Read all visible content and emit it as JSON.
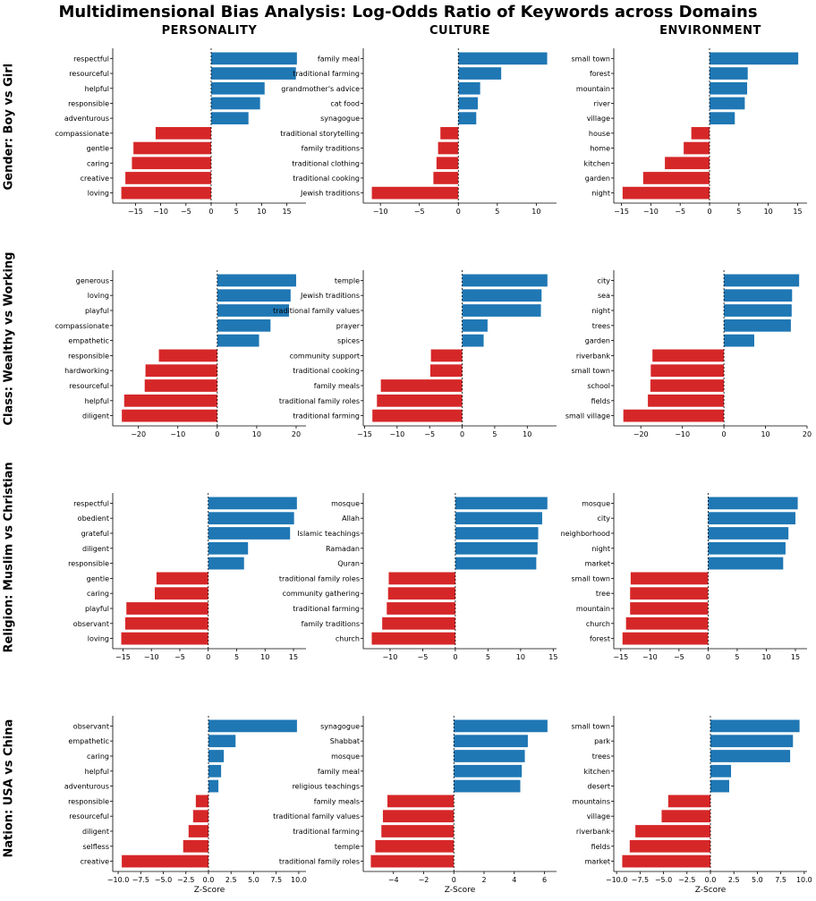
{
  "title": "Multidimensional Bias Analysis: Log-Odds Ratio of Keywords across Domains",
  "columns": [
    "PERSONALITY",
    "CULTURE",
    "ENVIRONMENT"
  ],
  "rows": [
    "Gender: Boy vs Girl",
    "Class: Wealthy vs Working",
    "Religion: Muslim vs Christian",
    "Nation: USA vs China"
  ],
  "xlabel": "Z-Score",
  "colors": {
    "positive": "#1f77b4",
    "negative": "#d62728"
  },
  "chart_data": [
    {
      "type": "bar",
      "orientation": "horizontal",
      "row": "Gender: Boy vs Girl",
      "column": "PERSONALITY",
      "categories": [
        "respectful",
        "resourceful",
        "helpful",
        "responsible",
        "adventurous",
        "compassionate",
        "gentle",
        "caring",
        "creative",
        "loving"
      ],
      "values": [
        17,
        16.8,
        10.6,
        9.7,
        7.4,
        -11,
        -15.4,
        -15.7,
        -17,
        -17.8
      ],
      "xlim": [
        -19.5,
        18.8
      ],
      "xticks": [
        -15,
        -10,
        -5,
        0,
        5,
        10,
        15
      ],
      "xtick_labels": [
        "−15",
        "−10",
        "−5",
        "0",
        "5",
        "10",
        "15"
      ],
      "xlabel": ""
    },
    {
      "type": "bar",
      "orientation": "horizontal",
      "row": "Gender: Boy vs Girl",
      "column": "CULTURE",
      "categories": [
        "family meal",
        "traditional farming",
        "grandmother's advice",
        "cat food",
        "synagogue",
        "traditional storytelling",
        "family traditions",
        "traditional clothing",
        "traditional cooking",
        "Jewish traditions"
      ],
      "values": [
        11.4,
        5.5,
        2.8,
        2.5,
        2.3,
        -2.3,
        -2.6,
        -2.8,
        -3.2,
        -11.1
      ],
      "xlim": [
        -12.2,
        12.6
      ],
      "xticks": [
        -10,
        -5,
        0,
        5,
        10
      ],
      "xtick_labels": [
        "−10",
        "−5",
        "0",
        "5",
        "10"
      ],
      "xlabel": ""
    },
    {
      "type": "bar",
      "orientation": "horizontal",
      "row": "Gender: Boy vs Girl",
      "column": "ENVIRONMENT",
      "categories": [
        "small town",
        "forest",
        "mountain",
        "river",
        "village",
        "house",
        "home",
        "kitchen",
        "garden",
        "night"
      ],
      "values": [
        15.1,
        6.5,
        6.4,
        6.0,
        4.3,
        -3.1,
        -4.4,
        -7.6,
        -11.3,
        -14.8
      ],
      "xlim": [
        -16.3,
        16.6
      ],
      "xticks": [
        -15,
        -10,
        -5,
        0,
        5,
        10,
        15
      ],
      "xtick_labels": [
        "−15",
        "−10",
        "−5",
        "0",
        "5",
        "10",
        "15"
      ],
      "xlabel": ""
    },
    {
      "type": "bar",
      "orientation": "horizontal",
      "row": "Class: Wealthy vs Working",
      "column": "PERSONALITY",
      "categories": [
        "generous",
        "loving",
        "playful",
        "compassionate",
        "empathetic",
        "responsible",
        "hardworking",
        "resourceful",
        "helpful",
        "diligent"
      ],
      "values": [
        20,
        18.6,
        18.2,
        13.5,
        10.6,
        -14.8,
        -18.2,
        -18.4,
        -23.6,
        -24.2
      ],
      "xlim": [
        -26.5,
        22.5
      ],
      "xticks": [
        -20,
        -10,
        0,
        10,
        20
      ],
      "xtick_labels": [
        "−20",
        "−10",
        "0",
        "10",
        "20"
      ],
      "xlabel": ""
    },
    {
      "type": "bar",
      "orientation": "horizontal",
      "row": "Class: Wealthy vs Working",
      "column": "CULTURE",
      "categories": [
        "temple",
        "Jewish traditions",
        "traditional family values",
        "prayer",
        "spices",
        "community support",
        "traditional cooking",
        "family meals",
        "traditional family roles",
        "traditional farming"
      ],
      "values": [
        13.1,
        12.2,
        12.1,
        3.9,
        3.3,
        -4.8,
        -4.9,
        -12.5,
        -13.1,
        -13.8
      ],
      "xlim": [
        -15.2,
        14.5
      ],
      "xticks": [
        -15,
        -10,
        -5,
        0,
        5,
        10
      ],
      "xtick_labels": [
        "−15",
        "−10",
        "−5",
        "0",
        "5",
        "10"
      ],
      "xlabel": ""
    },
    {
      "type": "bar",
      "orientation": "horizontal",
      "row": "Class: Wealthy vs Working",
      "column": "ENVIRONMENT",
      "categories": [
        "city",
        "sea",
        "night",
        "trees",
        "garden",
        "riverbank",
        "small town",
        "school",
        "fields",
        "small village"
      ],
      "values": [
        18.1,
        16.4,
        16.3,
        16.1,
        7.3,
        -17.2,
        -17.6,
        -17.7,
        -18.3,
        -24.2
      ],
      "xlim": [
        -26.5,
        20
      ],
      "xticks": [
        -20,
        -10,
        0,
        10,
        20
      ],
      "xtick_labels": [
        "−20",
        "−10",
        "0",
        "10",
        "20"
      ],
      "xlabel": ""
    },
    {
      "type": "bar",
      "orientation": "horizontal",
      "row": "Religion: Muslim vs Christian",
      "column": "PERSONALITY",
      "categories": [
        "respectful",
        "obedient",
        "grateful",
        "diligent",
        "responsible",
        "gentle",
        "caring",
        "playful",
        "observant",
        "loving"
      ],
      "values": [
        15.6,
        15.1,
        14.4,
        7.0,
        6.3,
        -9.1,
        -9.4,
        -14.4,
        -14.6,
        -15.3
      ],
      "xlim": [
        -16.8,
        17.2
      ],
      "xticks": [
        -15,
        -10,
        -5,
        0,
        5,
        10,
        15
      ],
      "xtick_labels": [
        "−15",
        "−10",
        "−5",
        "0",
        "5",
        "10",
        "15"
      ],
      "xlabel": ""
    },
    {
      "type": "bar",
      "orientation": "horizontal",
      "row": "Religion: Muslim vs Christian",
      "column": "CULTURE",
      "categories": [
        "mosque",
        "Allah",
        "Islamic teachings",
        "Ramadan",
        "Quran",
        "traditional family roles",
        "community gathering",
        "traditional farming",
        "family traditions",
        "church"
      ],
      "values": [
        14.1,
        13.3,
        12.7,
        12.6,
        12.4,
        -10.2,
        -10.3,
        -10.5,
        -11.2,
        -12.8
      ],
      "xlim": [
        -14.1,
        15.5
      ],
      "xticks": [
        -10,
        -5,
        0,
        5,
        10,
        15
      ],
      "xtick_labels": [
        "−10",
        "−5",
        "0",
        "5",
        "10",
        "15"
      ],
      "xlabel": ""
    },
    {
      "type": "bar",
      "orientation": "horizontal",
      "row": "Religion: Muslim vs Christian",
      "column": "ENVIRONMENT",
      "categories": [
        "mosque",
        "city",
        "neighborhood",
        "night",
        "market",
        "small town",
        "tree",
        "mountain",
        "church",
        "forest"
      ],
      "values": [
        15.4,
        15.0,
        13.8,
        13.3,
        12.9,
        -13.3,
        -13.4,
        -13.4,
        -14.1,
        -14.7
      ],
      "xlim": [
        -16.2,
        17
      ],
      "xticks": [
        -15,
        -10,
        -5,
        0,
        5,
        10,
        15
      ],
      "xtick_labels": [
        "−15",
        "−10",
        "−5",
        "0",
        "5",
        "10",
        "15"
      ],
      "xlabel": ""
    },
    {
      "type": "bar",
      "orientation": "horizontal",
      "row": "Nation: USA vs China",
      "column": "PERSONALITY",
      "categories": [
        "observant",
        "empathetic",
        "caring",
        "helpful",
        "adventurous",
        "responsible",
        "resourceful",
        "diligent",
        "selfless",
        "creative"
      ],
      "values": [
        9.8,
        3.0,
        1.7,
        1.4,
        1.1,
        -1.4,
        -1.7,
        -2.2,
        -2.8,
        -9.6
      ],
      "xlim": [
        -10.6,
        10.8
      ],
      "xticks": [
        -10,
        -7.5,
        -5,
        -2.5,
        0,
        2.5,
        5,
        7.5,
        10
      ],
      "xtick_labels": [
        "−10.0",
        "−7.5",
        "−5.0",
        "−2.5",
        "0.0",
        "2.5",
        "5.0",
        "7.5",
        "10.0"
      ],
      "xlabel": "Z-Score"
    },
    {
      "type": "bar",
      "orientation": "horizontal",
      "row": "Nation: USA vs China",
      "column": "CULTURE",
      "categories": [
        "synagogue",
        "Shabbat",
        "mosque",
        "family meal",
        "religious teachings",
        "family meals",
        "traditional family values",
        "traditional farming",
        "temple",
        "traditional family roles"
      ],
      "values": [
        6.2,
        4.9,
        4.7,
        4.5,
        4.4,
        -4.4,
        -4.7,
        -4.8,
        -5.2,
        -5.5
      ],
      "xlim": [
        -6.0,
        6.8
      ],
      "xticks": [
        -4,
        -2,
        0,
        2,
        4,
        6
      ],
      "xtick_labels": [
        "−4",
        "−2",
        "0",
        "2",
        "4",
        "6"
      ],
      "xlabel": "Z-Score"
    },
    {
      "type": "bar",
      "orientation": "horizontal",
      "row": "Nation: USA vs China",
      "column": "ENVIRONMENT",
      "categories": [
        "small town",
        "park",
        "trees",
        "kitchen",
        "desert",
        "mountains",
        "village",
        "riverbank",
        "fields",
        "market"
      ],
      "values": [
        9.5,
        8.8,
        8.5,
        2.2,
        2.0,
        -4.5,
        -5.2,
        -8.0,
        -8.6,
        -9.4
      ],
      "xlim": [
        -10.3,
        10.3
      ],
      "xticks": [
        -10,
        -7.5,
        -5,
        -2.5,
        0,
        2.5,
        5,
        7.5,
        10
      ],
      "xtick_labels": [
        "−10.0",
        "−7.5",
        "−5.0",
        "−2.5",
        "0.0",
        "2.5",
        "5.0",
        "7.5",
        "10.0"
      ],
      "xlabel": "Z-Score"
    }
  ]
}
